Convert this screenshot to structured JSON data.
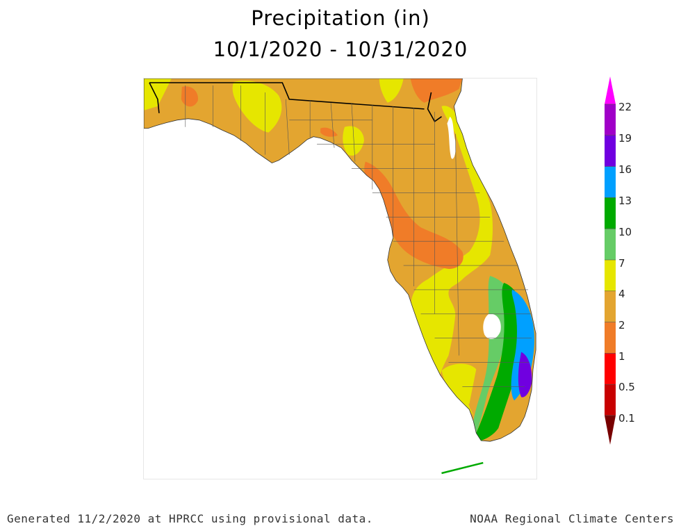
{
  "header": {
    "title": "Precipitation (in)",
    "date_range": "10/1/2020 - 10/31/2020"
  },
  "map": {
    "region": "Florida"
  },
  "legend": {
    "ticks": [
      "22",
      "19",
      "16",
      "13",
      "10",
      "7",
      "4",
      "2",
      "1",
      "0.5",
      "0.1"
    ],
    "colors": {
      "above_22": "#ff00ff",
      "19_22": "#a000c8",
      "16_19": "#7000e0",
      "13_16": "#00a0ff",
      "10_13": "#00aa00",
      "7_10": "#66cc66",
      "4_7": "#e6e600",
      "2_4": "#e3a530",
      "1_2": "#f07c28",
      "0.5_1": "#ff0000",
      "0.1_0.5": "#c80000",
      "below_0.1": "#780000"
    }
  },
  "footer": {
    "generated": "Generated 11/2/2020 at HPRCC using provisional data.",
    "source": "NOAA Regional Climate Centers"
  }
}
